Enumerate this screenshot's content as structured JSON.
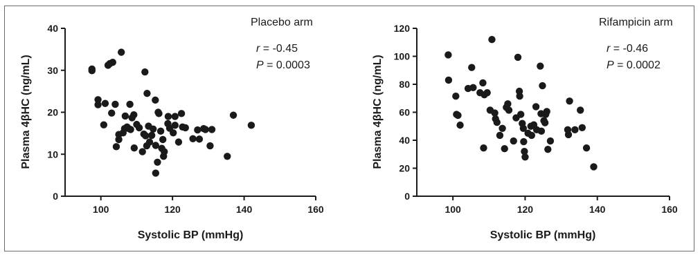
{
  "chart_data": [
    {
      "type": "scatter",
      "title": "Placebo arm",
      "xlabel": "Systolic BP (mmHg)",
      "ylabel": "Plasma 4βHC (ng/mL)",
      "xlim": [
        90,
        160
      ],
      "ylim": [
        0,
        40
      ],
      "xticks": [
        "100",
        "120",
        "140",
        "160"
      ],
      "yticks": [
        "0",
        "10",
        "20",
        "30",
        "40"
      ],
      "xtick_values": [
        100,
        120,
        140,
        160
      ],
      "ytick_values": [
        0,
        10,
        20,
        30,
        40
      ],
      "stats": {
        "r_label": "r",
        "r_value": " = -0.45",
        "p_label": "P",
        "p_value": " = 0.0003"
      },
      "point_color": "#1a1a1a",
      "points": [
        [
          97.5,
          30.3
        ],
        [
          97.5,
          29.9
        ],
        [
          99.2,
          23.0
        ],
        [
          99.2,
          21.8
        ],
        [
          100.8,
          17.0
        ],
        [
          101.2,
          22.1
        ],
        [
          102.0,
          31.2
        ],
        [
          102.5,
          31.6
        ],
        [
          103.3,
          31.9
        ],
        [
          103.0,
          19.8
        ],
        [
          104.0,
          21.9
        ],
        [
          104.3,
          11.8
        ],
        [
          105.0,
          14.7
        ],
        [
          105.0,
          13.5
        ],
        [
          105.7,
          34.3
        ],
        [
          106.2,
          15.1
        ],
        [
          106.6,
          16.1
        ],
        [
          106.8,
          19.1
        ],
        [
          107.3,
          16.5
        ],
        [
          107.8,
          16.1
        ],
        [
          108.1,
          21.9
        ],
        [
          108.3,
          15.9
        ],
        [
          108.7,
          18.7
        ],
        [
          109.2,
          19.4
        ],
        [
          109.3,
          11.5
        ],
        [
          110.0,
          17.1
        ],
        [
          110.7,
          16.3
        ],
        [
          111.6,
          10.6
        ],
        [
          112.0,
          14.8
        ],
        [
          112.3,
          29.6
        ],
        [
          112.5,
          14.4
        ],
        [
          112.9,
          24.5
        ],
        [
          112.8,
          12.0
        ],
        [
          113.3,
          16.7
        ],
        [
          113.6,
          12.9
        ],
        [
          114.2,
          14.5
        ],
        [
          114.6,
          16.0
        ],
        [
          115.2,
          22.9
        ],
        [
          115.3,
          5.5
        ],
        [
          115.3,
          12.1
        ],
        [
          115.8,
          8.1
        ],
        [
          116.0,
          20.0
        ],
        [
          116.2,
          19.7
        ],
        [
          116.7,
          15.5
        ],
        [
          117.0,
          11.4
        ],
        [
          117.3,
          13.5
        ],
        [
          117.5,
          9.5
        ],
        [
          117.7,
          10.6
        ],
        [
          118.8,
          19.0
        ],
        [
          118.7,
          17.3
        ],
        [
          119.2,
          16.2
        ],
        [
          120.2,
          15.1
        ],
        [
          120.7,
          16.9
        ],
        [
          120.7,
          19.0
        ],
        [
          121.7,
          12.9
        ],
        [
          122.5,
          19.7
        ],
        [
          122.8,
          16.5
        ],
        [
          123.6,
          16.3
        ],
        [
          125.7,
          13.7
        ],
        [
          127.0,
          15.8
        ],
        [
          127.5,
          13.6
        ],
        [
          128.7,
          16.1
        ],
        [
          129.2,
          15.9
        ],
        [
          130.5,
          12.0
        ],
        [
          131.0,
          15.9
        ],
        [
          135.3,
          9.5
        ],
        [
          137.0,
          19.3
        ],
        [
          142.0,
          16.9
        ]
      ]
    },
    {
      "type": "scatter",
      "title": "Rifampicin arm",
      "xlabel": "Systolic BP (mmHg)",
      "ylabel": "Plasma 4βHC (ng/mL)",
      "xlim": [
        90,
        160
      ],
      "ylim": [
        0,
        120
      ],
      "xticks": [
        "100",
        "120",
        "140",
        "160"
      ],
      "yticks": [
        "0",
        "20",
        "40",
        "60",
        "80",
        "100",
        "120"
      ],
      "xtick_values": [
        100,
        120,
        140,
        160
      ],
      "ytick_values": [
        0,
        20,
        40,
        60,
        80,
        100,
        120
      ],
      "stats": {
        "r_label": "r",
        "r_value": " = -0.46",
        "p_label": "P",
        "p_value": " = 0.0002"
      },
      "point_color": "#1a1a1a",
      "points": [
        [
          98.7,
          101.0
        ],
        [
          98.8,
          83.0
        ],
        [
          100.8,
          71.5
        ],
        [
          101.0,
          58.5
        ],
        [
          101.4,
          57.8
        ],
        [
          102.0,
          50.8
        ],
        [
          104.2,
          77.0
        ],
        [
          105.2,
          92.0
        ],
        [
          105.6,
          77.6
        ],
        [
          107.5,
          74.0
        ],
        [
          108.3,
          81.0
        ],
        [
          108.5,
          34.5
        ],
        [
          108.7,
          72.5
        ],
        [
          109.5,
          74.0
        ],
        [
          110.3,
          61.5
        ],
        [
          110.8,
          112.0
        ],
        [
          111.6,
          59.5
        ],
        [
          111.8,
          55.3
        ],
        [
          112.2,
          52.8
        ],
        [
          113.0,
          43.5
        ],
        [
          113.7,
          48.5
        ],
        [
          114.3,
          34.0
        ],
        [
          114.8,
          63.5
        ],
        [
          115.2,
          66.0
        ],
        [
          115.5,
          61.5
        ],
        [
          116.8,
          39.5
        ],
        [
          117.5,
          56.0
        ],
        [
          118.0,
          99.3
        ],
        [
          118.4,
          75.0
        ],
        [
          118.5,
          71.5
        ],
        [
          118.8,
          58.5
        ],
        [
          119.2,
          52.0
        ],
        [
          119.5,
          48.5
        ],
        [
          119.6,
          39.0
        ],
        [
          119.8,
          32.0
        ],
        [
          120.0,
          28.0
        ],
        [
          120.8,
          45.0
        ],
        [
          121.6,
          50.0
        ],
        [
          121.8,
          43.5
        ],
        [
          122.4,
          51.0
        ],
        [
          123.0,
          64.0
        ],
        [
          123.2,
          47.5
        ],
        [
          124.2,
          93.0
        ],
        [
          124.4,
          59.0
        ],
        [
          124.5,
          46.5
        ],
        [
          124.8,
          79.0
        ],
        [
          125.2,
          54.0
        ],
        [
          125.5,
          52.5
        ],
        [
          125.7,
          58.5
        ],
        [
          126.0,
          60.5
        ],
        [
          126.3,
          33.5
        ],
        [
          127.0,
          39.5
        ],
        [
          131.8,
          47.5
        ],
        [
          132.0,
          44.0
        ],
        [
          132.3,
          68.0
        ],
        [
          133.8,
          47.5
        ],
        [
          135.3,
          61.5
        ],
        [
          135.8,
          49.0
        ],
        [
          137.0,
          34.5
        ],
        [
          139.0,
          21.0
        ]
      ]
    }
  ]
}
